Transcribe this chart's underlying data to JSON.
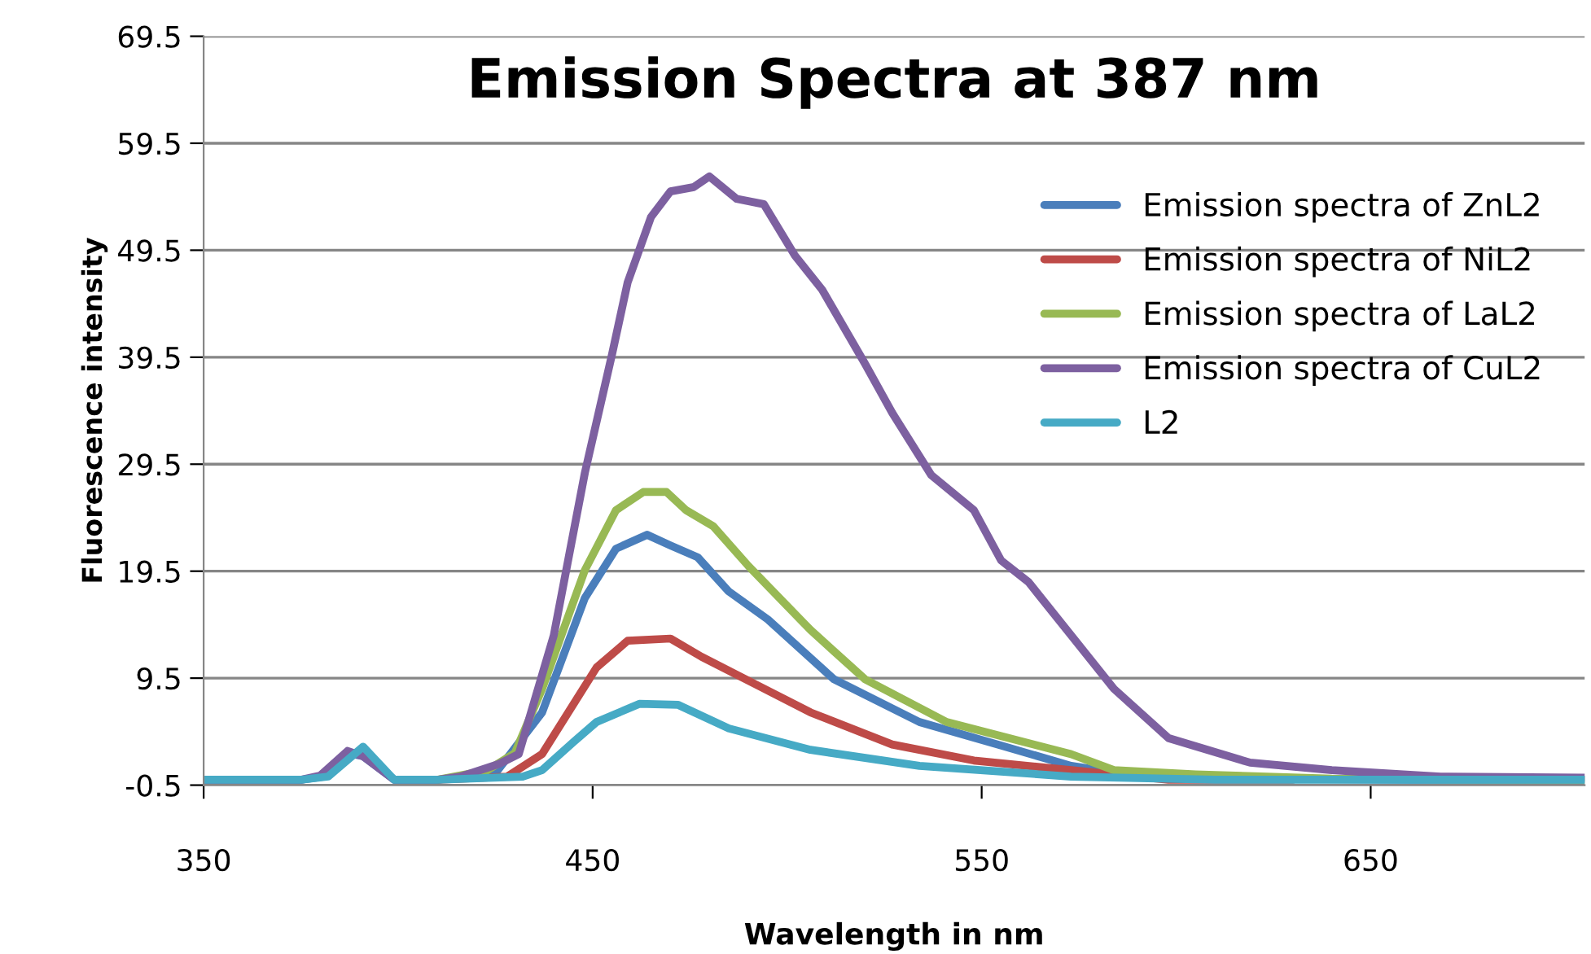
{
  "chart_data": {
    "type": "line",
    "title": "Emission Spectra at 387 nm",
    "xlabel": "Wavelength in nm",
    "ylabel": "Fluorescence intensity",
    "xlim": [
      350,
      705
    ],
    "xticks": [
      350,
      450,
      550,
      650
    ],
    "ylim": [
      -0.5,
      69.5
    ],
    "yticks": [
      -0.5,
      9.5,
      19.5,
      29.5,
      39.5,
      49.5,
      59.5,
      69.5
    ],
    "grid": "y",
    "legend": "top right",
    "marker": "none",
    "line_style": "solid",
    "series": [
      {
        "name": "Emission spectra of ZnL2",
        "color": "#4a7ebb",
        "x": [
          350,
          375,
          381,
          387,
          391,
          399,
          410,
          425,
          437,
          448,
          456,
          464,
          470,
          477,
          485,
          495,
          512,
          534,
          555,
          573,
          591,
          620,
          660,
          705
        ],
        "values": [
          0,
          0,
          0.3,
          2.5,
          2.2,
          0,
          0,
          0.6,
          6.3,
          17,
          21.6,
          22.9,
          21.9,
          20.8,
          17.6,
          15,
          9.4,
          5.4,
          3.2,
          1.3,
          0.3,
          0.1,
          0,
          0
        ]
      },
      {
        "name": "Emission spectra of NiL2",
        "color": "#be4b48",
        "x": [
          410,
          428,
          437,
          451,
          459,
          470,
          478,
          492,
          506,
          527,
          548,
          573,
          598,
          630
        ],
        "values": [
          0,
          0.3,
          2.4,
          10.5,
          13,
          13.2,
          11.5,
          8.9,
          6.3,
          3.3,
          1.8,
          0.9,
          0,
          0
        ]
      },
      {
        "name": "Emission spectra of LaL2",
        "color": "#98b954",
        "x": [
          410,
          423,
          430,
          437,
          448,
          456,
          463,
          469,
          474,
          481,
          490,
          506,
          520,
          541,
          573,
          584,
          605,
          640,
          705
        ],
        "values": [
          0,
          0.9,
          2.5,
          8.5,
          19.6,
          25.2,
          26.9,
          26.9,
          25.2,
          23.7,
          20,
          14,
          9.4,
          5.4,
          2.4,
          0.9,
          0.5,
          0.1,
          0
        ]
      },
      {
        "name": "Emission spectra of CuL2",
        "color": "#7d60a0",
        "x": [
          350,
          375,
          380,
          387,
          391,
          399,
          410,
          416,
          426,
          431,
          440,
          448,
          455,
          459,
          465,
          470,
          476,
          480,
          487,
          494,
          502,
          509,
          520,
          527,
          537,
          548,
          555,
          562,
          573,
          584,
          598,
          619,
          640,
          668,
          705
        ],
        "values": [
          0,
          0,
          0.4,
          2.7,
          2.2,
          0,
          0,
          0.3,
          1.5,
          2.4,
          13.5,
          28.7,
          39.8,
          46.5,
          52.6,
          55,
          55.4,
          56.4,
          54.3,
          53.8,
          49,
          45.8,
          38.9,
          34.3,
          28.5,
          25.2,
          20.5,
          18.5,
          13.5,
          8.5,
          3.9,
          1.6,
          0.9,
          0.3,
          0.2
        ]
      },
      {
        "name": "L2",
        "color": "#46aac5",
        "x": [
          350,
          375,
          382,
          391,
          399,
          410,
          432,
          437,
          445,
          451,
          462,
          472,
          485,
          506,
          534,
          573,
          610,
          705
        ],
        "values": [
          0,
          0,
          0.3,
          3.1,
          0,
          0,
          0.3,
          0.9,
          3.5,
          5.4,
          7.1,
          7,
          4.8,
          2.8,
          1.3,
          0.3,
          0,
          0
        ]
      }
    ]
  }
}
